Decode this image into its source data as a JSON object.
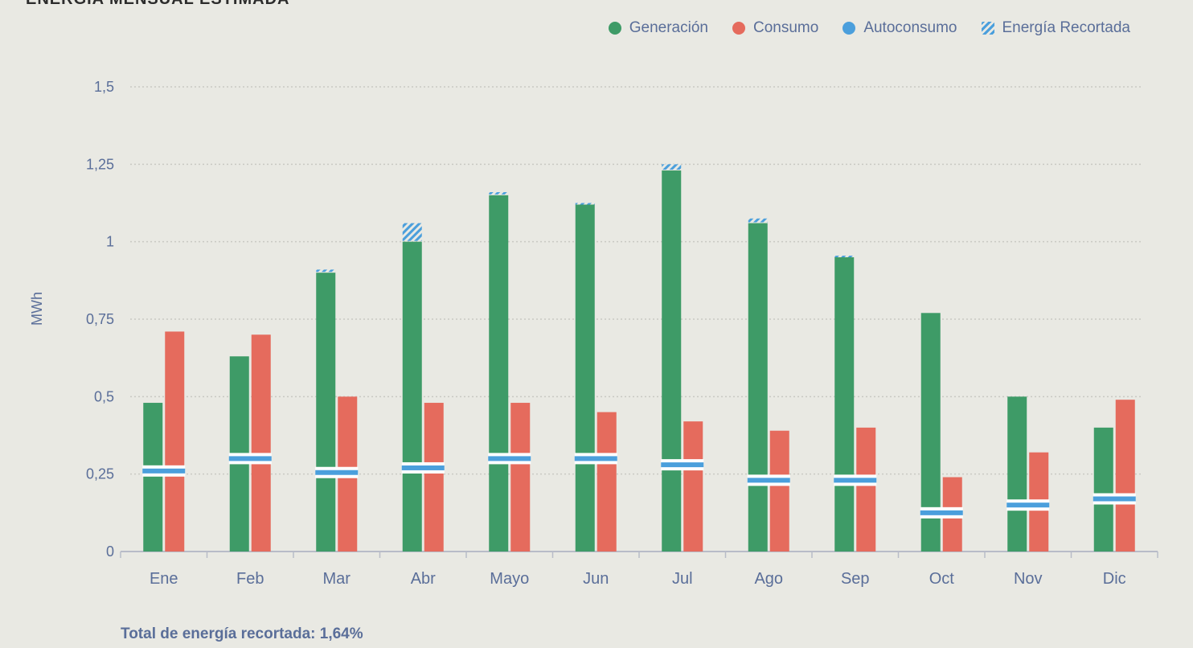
{
  "title": "ENERGÍA MENSUAL ESTIMADA",
  "colors": {
    "generacion": "#3e9b67",
    "consumo": "#e56b5d",
    "autoconsumo": "#4b9fdc",
    "recortada": "#4b9fdc",
    "axis_text": "#5a6e99",
    "grid": "#c9c9c3"
  },
  "legend": {
    "generacion": "Generación",
    "consumo": "Consumo",
    "autoconsumo": "Autoconsumo",
    "recortada": "Energía Recortada"
  },
  "footer": "Total de energía recortada: 1,64%",
  "chart_data": {
    "type": "bar",
    "title": "ENERGÍA MENSUAL ESTIMADA",
    "xlabel": "",
    "ylabel": "MWh",
    "ylim": [
      0,
      1.5
    ],
    "yticks": [
      0,
      0.25,
      0.5,
      0.75,
      1,
      1.25,
      1.5
    ],
    "ytick_labels": [
      "0",
      "0,25",
      "0,5",
      "0,75",
      "1",
      "1,25",
      "1,5"
    ],
    "categories": [
      "Ene",
      "Feb",
      "Mar",
      "Abr",
      "Mayo",
      "Jun",
      "Jul",
      "Ago",
      "Sep",
      "Oct",
      "Nov",
      "Dic"
    ],
    "series": [
      {
        "name": "Generación",
        "values": [
          0.48,
          0.63,
          0.9,
          1.0,
          1.15,
          1.12,
          1.23,
          1.06,
          0.95,
          0.77,
          0.5,
          0.4
        ]
      },
      {
        "name": "Consumo",
        "values": [
          0.71,
          0.7,
          0.5,
          0.48,
          0.48,
          0.45,
          0.42,
          0.39,
          0.4,
          0.24,
          0.32,
          0.49
        ]
      },
      {
        "name": "Autoconsumo",
        "values": [
          0.26,
          0.3,
          0.255,
          0.27,
          0.3,
          0.3,
          0.28,
          0.23,
          0.23,
          0.125,
          0.15,
          0.17
        ]
      },
      {
        "name": "Energía Recortada",
        "values": [
          0,
          0,
          0.01,
          0.06,
          0.01,
          0.005,
          0.02,
          0.015,
          0.005,
          0,
          0,
          0
        ]
      }
    ]
  }
}
